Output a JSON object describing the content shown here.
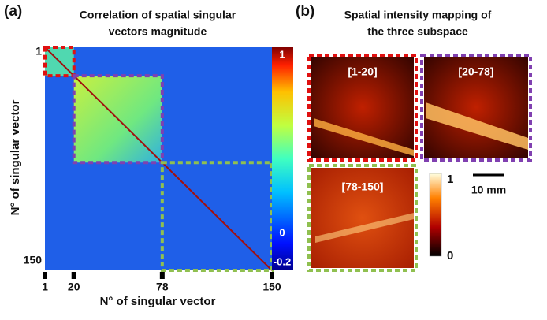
{
  "panel_a": {
    "label": "(a)",
    "title": [
      "Correlation of spatial singular",
      "vectors magnitude"
    ],
    "xlabel": "N° of singular vector",
    "ylabel": "N° of singular vector",
    "lim": [
      1,
      150
    ],
    "xticks": [
      1,
      20,
      78,
      150
    ],
    "yticks": [
      1,
      150
    ],
    "clim": [
      -0.2,
      1
    ],
    "cticks": [
      1,
      0,
      -0.2
    ]
  },
  "panel_b": {
    "label": "(b)",
    "title": [
      "Spatial intensity mapping of",
      "the three subspace"
    ],
    "images": [
      "[1-20]",
      "[20-78]",
      "[78-150]"
    ],
    "cticks": [
      1,
      0
    ],
    "clim": [
      0,
      1
    ],
    "scale": "10 mm"
  }
}
